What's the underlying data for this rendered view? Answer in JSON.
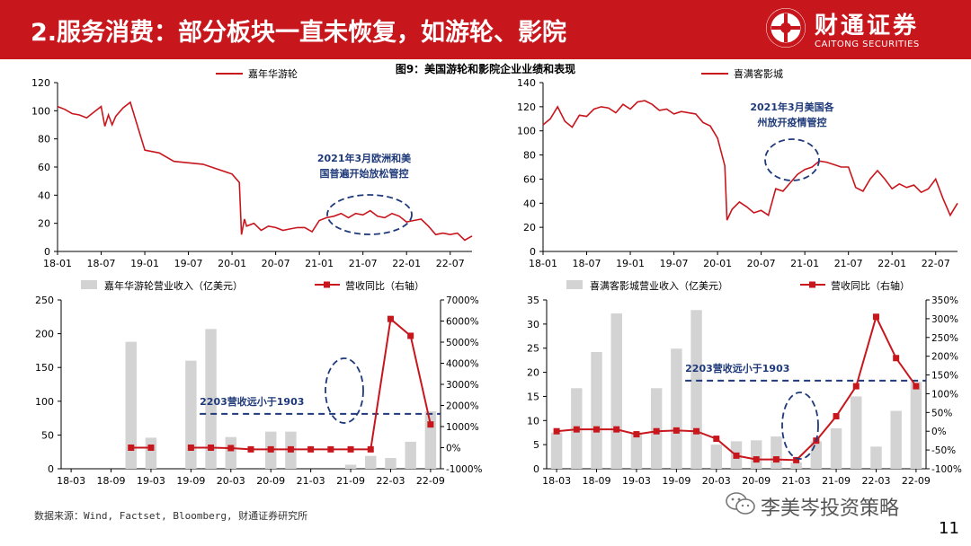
{
  "header": {
    "title": "2.服务消费：部分板块一直未恢复，如游轮、影院",
    "brand_name": "财通证券",
    "brand_en": "CAITONG SECURITIES",
    "bg_color": "#c8161d"
  },
  "figure_title": "图9：美国游轮和影院企业业绩和表现",
  "source_note": "数据来源：Wind, Factset, Bloomberg, 财通证券研究所",
  "watermark": {
    "text": "李美岑投资策略",
    "icon": "wechat-icon"
  },
  "page_number": "11",
  "chart_data": [
    {
      "id": "carnival_price",
      "type": "line",
      "series": [
        {
          "name": "嘉年华游轮",
          "color": "#c8161d",
          "x": [
            0,
            1,
            2,
            3,
            4,
            5,
            6,
            6.5,
            7,
            7.5,
            8,
            9,
            10,
            12,
            14,
            16,
            18,
            20,
            24,
            25,
            25.3,
            25.7,
            26,
            27,
            28,
            29,
            30,
            31,
            32,
            33,
            34,
            35,
            36,
            37,
            38,
            39,
            40,
            41,
            42,
            43,
            44,
            45,
            46,
            47,
            48,
            49,
            50,
            51,
            52,
            53,
            54,
            55,
            56,
            57
          ],
          "values": [
            103,
            101,
            98,
            97,
            95,
            99,
            103,
            89,
            97,
            90,
            96,
            102,
            106,
            72,
            70,
            64,
            63,
            62,
            55,
            49,
            12,
            23,
            18,
            20,
            15,
            18,
            17,
            15,
            16,
            17,
            17,
            14,
            22,
            24,
            25,
            27,
            24,
            27,
            26,
            29,
            25,
            24,
            27,
            25,
            21,
            22,
            23,
            18,
            12,
            13,
            12,
            13,
            8,
            11
          ]
        }
      ],
      "x_ticks": [
        "18-01",
        "18-07",
        "19-01",
        "19-07",
        "20-01",
        "20-07",
        "21-01",
        "21-07",
        "22-01",
        "22-07"
      ],
      "x_tick_positions": [
        0,
        6,
        12,
        18,
        24,
        30,
        36,
        42,
        48,
        54
      ],
      "xlim": [
        0,
        57
      ],
      "ylim": [
        0,
        120
      ],
      "y_ticks": [
        "0",
        "20",
        "40",
        "60",
        "80",
        "100",
        "120"
      ],
      "annotation": [
        "2021年3月欧洲和美",
        "国普遍开始放松管控"
      ],
      "legend_position": "top-left"
    },
    {
      "id": "cinemark_price",
      "type": "line",
      "series": [
        {
          "name": "喜满客影城",
          "color": "#c8161d",
          "x": [
            0,
            1,
            2,
            3,
            4,
            5,
            6,
            7,
            8,
            9,
            10,
            11,
            12,
            13,
            14,
            15,
            16,
            17,
            18,
            19,
            20,
            21,
            22,
            23,
            24,
            25,
            25.3,
            26,
            27,
            28,
            29,
            30,
            31,
            32,
            33,
            34,
            35,
            36,
            37,
            38,
            39,
            40,
            41,
            42,
            43,
            44,
            45,
            46,
            47,
            48,
            49,
            50,
            51,
            52,
            53,
            54,
            55,
            56,
            57
          ],
          "values": [
            105,
            110,
            120,
            108,
            103,
            113,
            112,
            118,
            120,
            119,
            115,
            122,
            118,
            124,
            125,
            122,
            117,
            118,
            114,
            116,
            115,
            114,
            107,
            104,
            94,
            71,
            26,
            35,
            41,
            37,
            32,
            34,
            30,
            52,
            50,
            57,
            64,
            68,
            70,
            75,
            74,
            72,
            70,
            70,
            53,
            50,
            60,
            67,
            60,
            52,
            56,
            53,
            55,
            49,
            52,
            60,
            44,
            30,
            40
          ]
        }
      ],
      "x_ticks": [
        "18-01",
        "18-07",
        "19-01",
        "19-07",
        "20-01",
        "20-07",
        "21-01",
        "21-07",
        "22-01",
        "22-07"
      ],
      "x_tick_positions": [
        0,
        6,
        12,
        18,
        24,
        30,
        36,
        42,
        48,
        54
      ],
      "xlim": [
        0,
        57
      ],
      "ylim": [
        0,
        140
      ],
      "y_ticks": [
        "0",
        "20",
        "40",
        "60",
        "80",
        "100",
        "120",
        "140"
      ],
      "annotation": [
        "2021年3月美国各",
        "州放开疫情管控"
      ],
      "legend_position": "top-left"
    },
    {
      "id": "carnival_revenue",
      "type": "bar",
      "legend": [
        "嘉年华游轮营业收入（亿美元）",
        "营收同比（右轴）"
      ],
      "categories": [
        "18-03",
        "18-06",
        "18-09",
        "18-12",
        "19-03",
        "19-06",
        "19-09",
        "19-12",
        "20-03",
        "20-06",
        "20-09",
        "20-12",
        "21-03",
        "21-06",
        "21-09",
        "21-12",
        "22-03",
        "22-06",
        "22-09"
      ],
      "x_ticks": [
        "18-03",
        "18-09",
        "19-03",
        "19-09",
        "20-03",
        "20-09",
        "21-03",
        "21-09",
        "22-03",
        "22-09"
      ],
      "series": [
        {
          "name": "嘉年华游轮营业收入（亿美元）",
          "color": "#d3d3d3",
          "axis": "left",
          "values": [
            null,
            null,
            null,
            188,
            46,
            null,
            160,
            207,
            47,
            null,
            55,
            55,
            null,
            null,
            6,
            19,
            16,
            40,
            85
          ]
        },
        {
          "name": "营收同比（右轴）",
          "color": "#c8161d",
          "axis": "right",
          "type": "line",
          "values": [
            null,
            null,
            null,
            0,
            0,
            null,
            0,
            0,
            -20,
            -80,
            -80,
            -80,
            -80,
            -80,
            -80,
            -80,
            6100,
            5300,
            1100
          ]
        }
      ],
      "ylim_left": [
        0,
        250
      ],
      "ylim_right": [
        -1000,
        7000
      ],
      "y_ticks_left": [
        "0",
        "50",
        "100",
        "150",
        "200",
        "250"
      ],
      "y_ticks_right": [
        "-1000%",
        "0%",
        "1000%",
        "2000%",
        "3000%",
        "4000%",
        "5000%",
        "6000%",
        "7000%"
      ],
      "reference_line": {
        "label": "2203营收远小于1903",
        "value": 1600,
        "axis": "right"
      }
    },
    {
      "id": "cinemark_revenue",
      "type": "bar",
      "legend": [
        "喜满客影城营业收入（亿美元）",
        "营收同比（右轴）"
      ],
      "categories": [
        "18-03",
        "18-06",
        "18-09",
        "18-12",
        "19-03",
        "19-06",
        "19-09",
        "19-12",
        "20-03",
        "20-06",
        "20-09",
        "20-12",
        "21-03",
        "21-06",
        "21-09",
        "21-12",
        "22-03",
        "22-06",
        "22-09"
      ],
      "x_ticks": [
        "18-03",
        "18-09",
        "19-03",
        "19-09",
        "20-03",
        "20-09",
        "21-03",
        "21-09",
        "22-03",
        "22-09"
      ],
      "series": [
        {
          "name": "喜满客影城营业收入（亿美元）",
          "color": "#d3d3d3",
          "axis": "left",
          "values": [
            7.5,
            16.7,
            24.2,
            32.2,
            7.5,
            16.7,
            24.9,
            32.9,
            5,
            5.7,
            5.9,
            6.7,
            1.3,
            5.7,
            8.4,
            15,
            4.6,
            12,
            18
          ]
        },
        {
          "name": "营收同比（右轴）",
          "color": "#c8161d",
          "axis": "right",
          "type": "line",
          "values": [
            0,
            5,
            5,
            5,
            -8,
            0,
            2,
            0,
            -20,
            -65,
            -75,
            -75,
            -77,
            -25,
            40,
            120,
            305,
            195,
            120
          ]
        }
      ],
      "ylim_left": [
        0,
        35
      ],
      "ylim_right": [
        -100,
        350
      ],
      "y_ticks_left": [
        "0",
        "5",
        "10",
        "15",
        "20",
        "25",
        "30",
        "35"
      ],
      "y_ticks_right": [
        "-100%",
        "-50%",
        "0%",
        "50%",
        "100%",
        "150%",
        "200%",
        "250%",
        "300%",
        "350%"
      ],
      "reference_line": {
        "label": "2203营收远小于1903",
        "value": 135,
        "axis": "right"
      }
    }
  ]
}
